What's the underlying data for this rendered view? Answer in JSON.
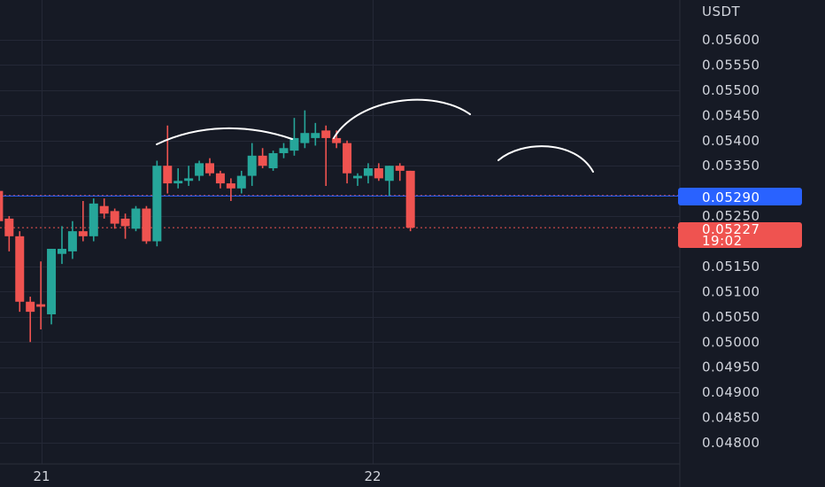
{
  "colors": {
    "background": "#161a25",
    "grid": "#242836",
    "up": "#26a69a",
    "down": "#ef5350",
    "blue_line": "#2962ff",
    "annotation": "#ffffff",
    "axis_text": "#d1d4dc"
  },
  "price_axis": {
    "currency": "USDT",
    "ticks": [
      "0.05600",
      "0.05550",
      "0.05500",
      "0.05450",
      "0.05400",
      "0.05350",
      "0.05250",
      "0.05150",
      "0.05100",
      "0.05050",
      "0.05000",
      "0.04950",
      "0.04900",
      "0.04850",
      "0.04800"
    ]
  },
  "time_axis": {
    "labels": [
      "21",
      "22"
    ]
  },
  "badges": {
    "blue_price": "0.05290",
    "last_price": "0.05227",
    "countdown": "19:02"
  },
  "chart_data": {
    "type": "candlestick",
    "xlabel": "",
    "ylabel": "",
    "ylim": [
      0.0477,
      0.0564
    ],
    "grid": true,
    "horizontal_lines": [
      {
        "value": 0.05291,
        "style": "dotted",
        "color": "#ef5350"
      },
      {
        "value": 0.0529,
        "style": "solid",
        "color": "#2962ff"
      },
      {
        "value": 0.05227,
        "style": "dotted",
        "color": "#ef5350"
      }
    ],
    "candles": [
      {
        "o": 0.053,
        "h": 0.05305,
        "l": 0.0524,
        "c": 0.0524
      },
      {
        "o": 0.05245,
        "h": 0.0525,
        "l": 0.0518,
        "c": 0.0521
      },
      {
        "o": 0.0521,
        "h": 0.0522,
        "l": 0.0506,
        "c": 0.0508
      },
      {
        "o": 0.0508,
        "h": 0.0509,
        "l": 0.05,
        "c": 0.0506
      },
      {
        "o": 0.05075,
        "h": 0.0516,
        "l": 0.05025,
        "c": 0.0507
      },
      {
        "o": 0.05055,
        "h": 0.05185,
        "l": 0.05035,
        "c": 0.05185
      },
      {
        "o": 0.05175,
        "h": 0.0523,
        "l": 0.05155,
        "c": 0.05185
      },
      {
        "o": 0.0518,
        "h": 0.0524,
        "l": 0.05165,
        "c": 0.0522
      },
      {
        "o": 0.0522,
        "h": 0.0528,
        "l": 0.052,
        "c": 0.0521
      },
      {
        "o": 0.0521,
        "h": 0.05285,
        "l": 0.052,
        "c": 0.05275
      },
      {
        "o": 0.0527,
        "h": 0.05285,
        "l": 0.05245,
        "c": 0.05255
      },
      {
        "o": 0.0526,
        "h": 0.05265,
        "l": 0.05225,
        "c": 0.05235
      },
      {
        "o": 0.05245,
        "h": 0.05255,
        "l": 0.05205,
        "c": 0.0523
      },
      {
        "o": 0.05225,
        "h": 0.0527,
        "l": 0.0522,
        "c": 0.05265
      },
      {
        "o": 0.05265,
        "h": 0.0527,
        "l": 0.05195,
        "c": 0.052
      },
      {
        "o": 0.052,
        "h": 0.0536,
        "l": 0.0519,
        "c": 0.0535
      },
      {
        "o": 0.0535,
        "h": 0.0543,
        "l": 0.05295,
        "c": 0.05315
      },
      {
        "o": 0.05315,
        "h": 0.05345,
        "l": 0.05305,
        "c": 0.0532
      },
      {
        "o": 0.0532,
        "h": 0.0535,
        "l": 0.0531,
        "c": 0.05325
      },
      {
        "o": 0.0533,
        "h": 0.0536,
        "l": 0.0532,
        "c": 0.05355
      },
      {
        "o": 0.05355,
        "h": 0.05365,
        "l": 0.0533,
        "c": 0.05335
      },
      {
        "o": 0.05335,
        "h": 0.0534,
        "l": 0.05305,
        "c": 0.05315
      },
      {
        "o": 0.05315,
        "h": 0.05325,
        "l": 0.0528,
        "c": 0.05305
      },
      {
        "o": 0.05305,
        "h": 0.0534,
        "l": 0.05295,
        "c": 0.0533
      },
      {
        "o": 0.0533,
        "h": 0.05395,
        "l": 0.0531,
        "c": 0.0537
      },
      {
        "o": 0.0537,
        "h": 0.05385,
        "l": 0.05345,
        "c": 0.0535
      },
      {
        "o": 0.05345,
        "h": 0.0538,
        "l": 0.0534,
        "c": 0.05375
      },
      {
        "o": 0.05375,
        "h": 0.05395,
        "l": 0.05365,
        "c": 0.05385
      },
      {
        "o": 0.0538,
        "h": 0.05445,
        "l": 0.0537,
        "c": 0.05405
      },
      {
        "o": 0.05395,
        "h": 0.0546,
        "l": 0.05385,
        "c": 0.05415
      },
      {
        "o": 0.05405,
        "h": 0.05435,
        "l": 0.0539,
        "c": 0.05415
      },
      {
        "o": 0.0542,
        "h": 0.0543,
        "l": 0.0531,
        "c": 0.05405
      },
      {
        "o": 0.05405,
        "h": 0.0542,
        "l": 0.05385,
        "c": 0.05395
      },
      {
        "o": 0.05395,
        "h": 0.054,
        "l": 0.05315,
        "c": 0.05335
      },
      {
        "o": 0.05325,
        "h": 0.05335,
        "l": 0.0531,
        "c": 0.0533
      },
      {
        "o": 0.0533,
        "h": 0.05355,
        "l": 0.05315,
        "c": 0.05345
      },
      {
        "o": 0.05345,
        "h": 0.05355,
        "l": 0.0532,
        "c": 0.05325
      },
      {
        "o": 0.0532,
        "h": 0.0535,
        "l": 0.0529,
        "c": 0.0535
      },
      {
        "o": 0.0535,
        "h": 0.05355,
        "l": 0.0532,
        "c": 0.0534
      },
      {
        "o": 0.0534,
        "h": 0.0534,
        "l": 0.0522,
        "c": 0.05227
      }
    ]
  }
}
